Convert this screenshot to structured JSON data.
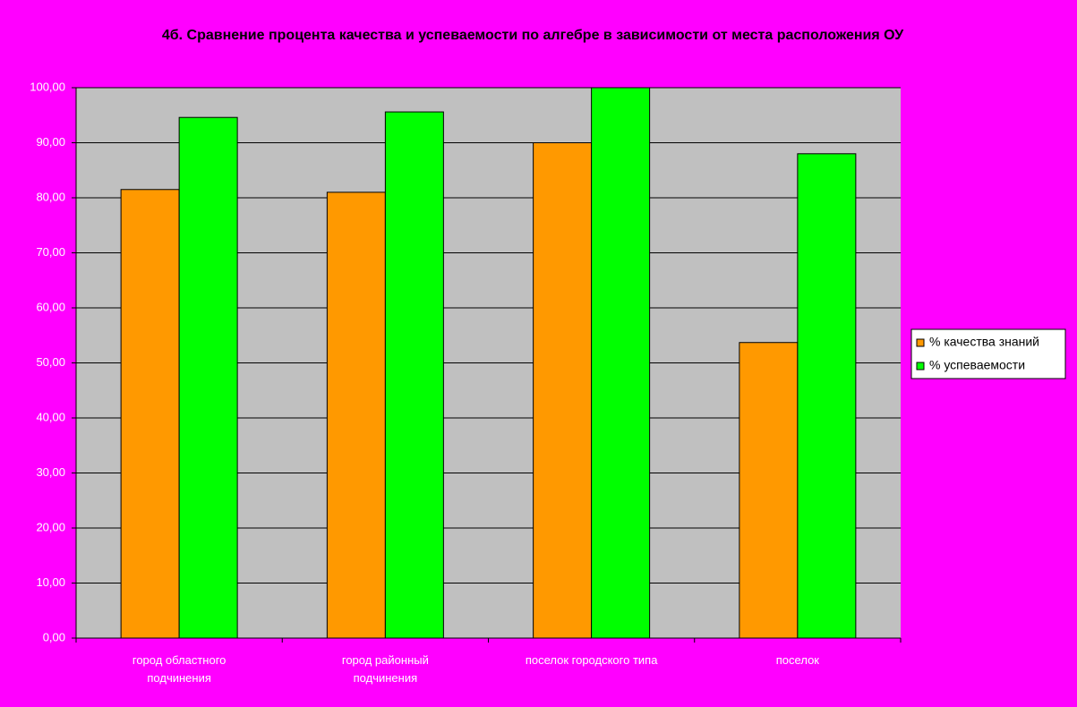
{
  "chart_data": {
    "type": "bar",
    "title": "4б. Сравнение процента качества и успеваемости по алгебре в зависимости от места расположения ОУ",
    "categories": [
      "город областного подчинения",
      "город районный подчинения",
      "поселок городского типа",
      "поселок"
    ],
    "series": [
      {
        "name": "% качества знаний",
        "color": "#ff9900",
        "values": [
          81.5,
          81.0,
          90.0,
          53.7
        ]
      },
      {
        "name": "% успеваемости",
        "color": "#00ff00",
        "values": [
          94.6,
          95.6,
          100.0,
          88.0
        ]
      }
    ],
    "ylim": [
      0,
      100
    ],
    "yticks": [
      {
        "value": 0,
        "label": "0,00"
      },
      {
        "value": 10,
        "label": "10,00"
      },
      {
        "value": 20,
        "label": "20,00"
      },
      {
        "value": 30,
        "label": "30,00"
      },
      {
        "value": 40,
        "label": "40,00"
      },
      {
        "value": 50,
        "label": "50,00"
      },
      {
        "value": 60,
        "label": "60,00"
      },
      {
        "value": 70,
        "label": "70,00"
      },
      {
        "value": 80,
        "label": "80,00"
      },
      {
        "value": 90,
        "label": "90,00"
      },
      {
        "value": 100,
        "label": "100,00"
      }
    ],
    "grid": true,
    "legend": "right",
    "background": "#ff00ff",
    "plot_background": "#c0c0c0"
  }
}
